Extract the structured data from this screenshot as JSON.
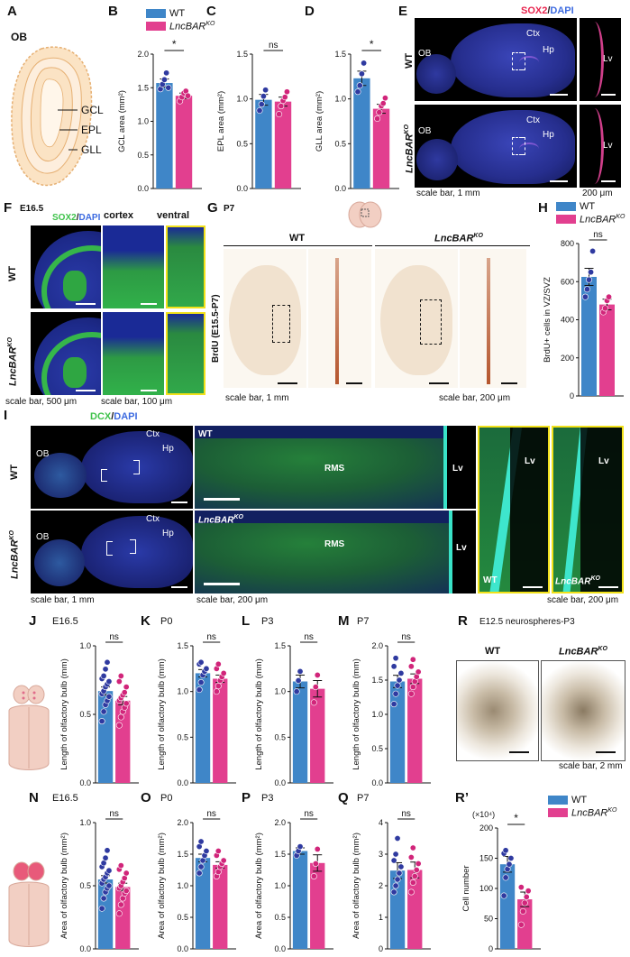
{
  "colors": {
    "wt": "#3f86c8",
    "ko": "#e23f8f",
    "ink": "#111111",
    "sox2": "#e8244e",
    "dapi": "#3d6be0",
    "dcx": "#3ec24a",
    "yellowbox": "#f1e11a"
  },
  "panels": {
    "A": "A",
    "B": "B",
    "C": "C",
    "D": "D",
    "E": "E",
    "F": "F",
    "G": "G",
    "H": "H",
    "I": "I",
    "J": "J",
    "K": "K",
    "L": "L",
    "M": "M",
    "N": "N",
    "O": "O",
    "P": "P",
    "Q": "Q",
    "R": "R",
    "R2": "R’"
  },
  "panelA": {
    "region": "OB",
    "layers": [
      "GCL",
      "EPL",
      "GLL"
    ]
  },
  "legend": {
    "wt": "WT",
    "ko_base": "LncBAR",
    "ko_sup": "KO"
  },
  "panelE": {
    "stain_red": "SOX2",
    "slash": "/",
    "stain_blue": "DAPI",
    "row1": "WT",
    "row2_base": "LncBAR",
    "row2_sup": "KO",
    "ob": "OB",
    "ctx": "Ctx",
    "hp": "Hp",
    "lv": "Lv",
    "scale_main": "scale bar, 1 mm",
    "scale_inset": "200 μm"
  },
  "panelF": {
    "age": "E16.5",
    "stain_green": "SOX2",
    "slash": "/",
    "stain_blue": "DAPI",
    "col_cortex": "cortex",
    "col_ventral": "ventral",
    "row1": "WT",
    "row2_base": "LncBAR",
    "row2_sup": "KO",
    "scale_main": "scale bar, 500 μm",
    "scale_inset": "scale bar, 100 μm"
  },
  "panelG": {
    "age": "P7",
    "wt": "WT",
    "ko_base": "LncBAR",
    "ko_sup": "KO",
    "ylabel": "BrdU (E15.5-P7)",
    "scale_main": "scale bar, 1 mm",
    "scale_inset": "scale bar, 200 μm"
  },
  "panelI": {
    "stain_green": "DCX",
    "slash": "/",
    "stain_blue": "DAPI",
    "row1": "WT",
    "row2_base": "LncBAR",
    "row2_sup": "KO",
    "ob": "OB",
    "ctx": "Ctx",
    "hp": "Hp",
    "rms": "RMS",
    "lv": "Lv",
    "wt": "WT",
    "ko_base": "LncBAR",
    "ko_sup": "KO",
    "scale_main": "scale bar, 1 mm",
    "scale_mid": "scale bar, 200 μm",
    "scale_right": "scale bar, 200 μm"
  },
  "panelR": {
    "title": "E12.5 neurospheres-P3",
    "wt": "WT",
    "ko_base": "LncBAR",
    "ko_sup": "KO",
    "scale": "scale bar, 2 mm"
  },
  "chart_data": [
    {
      "panel": "B",
      "type": "bar",
      "ylabel": "GCL area (mm²)",
      "ylim": [
        0,
        2.0
      ],
      "ticks": [
        "0.0",
        "0.5",
        "1.0",
        "1.5",
        "2.0"
      ],
      "tick_values": [
        0,
        0.5,
        1.0,
        1.5,
        2.0
      ],
      "significance": "*",
      "series": [
        {
          "name": "WT",
          "mean": 1.57,
          "sem": 0.06,
          "points": [
            1.48,
            1.55,
            1.62,
            1.72,
            1.5
          ]
        },
        {
          "name": "LncBAR KO",
          "mean": 1.38,
          "sem": 0.04,
          "points": [
            1.3,
            1.36,
            1.42,
            1.45,
            1.38
          ]
        }
      ]
    },
    {
      "panel": "C",
      "type": "bar",
      "ylabel": "EPL area (mm²)",
      "ylim": [
        0,
        1.5
      ],
      "ticks": [
        "0.0",
        "0.5",
        "1.0",
        "1.5"
      ],
      "tick_values": [
        0,
        0.5,
        1.0,
        1.5
      ],
      "significance": "ns",
      "series": [
        {
          "name": "WT",
          "mean": 0.99,
          "sem": 0.06,
          "points": [
            0.87,
            0.94,
            1.03,
            1.1
          ]
        },
        {
          "name": "LncBAR KO",
          "mean": 0.97,
          "sem": 0.05,
          "points": [
            0.83,
            0.92,
            0.98,
            1.02,
            1.08
          ]
        }
      ]
    },
    {
      "panel": "D",
      "type": "bar",
      "ylabel": "GLL area (mm²)",
      "ylim": [
        0,
        1.5
      ],
      "ticks": [
        "0.0",
        "0.5",
        "1.0",
        "1.5"
      ],
      "tick_values": [
        0,
        0.5,
        1.0,
        1.5
      ],
      "significance": "*",
      "series": [
        {
          "name": "WT",
          "mean": 1.23,
          "sem": 0.08,
          "points": [
            1.08,
            1.15,
            1.28,
            1.4
          ]
        },
        {
          "name": "LncBAR KO",
          "mean": 0.89,
          "sem": 0.05,
          "points": [
            0.78,
            0.85,
            0.92,
            0.95,
            1.01
          ]
        }
      ]
    },
    {
      "panel": "H",
      "type": "bar",
      "ylabel": "BrdU+ cells in VZ/SVZ",
      "ylim": [
        0,
        800
      ],
      "ticks": [
        "0",
        "200",
        "400",
        "600",
        "800"
      ],
      "tick_values": [
        0,
        200,
        400,
        600,
        800
      ],
      "significance": "ns",
      "series": [
        {
          "name": "WT",
          "mean": 625,
          "sem": 45,
          "points": [
            520,
            560,
            610,
            650,
            760
          ]
        },
        {
          "name": "LncBAR KO",
          "mean": 480,
          "sem": 28,
          "points": [
            440,
            460,
            500,
            520
          ]
        }
      ]
    },
    {
      "panel": "J",
      "type": "bar",
      "age": "E16.5",
      "ylabel": "Length of olfactory bulb (mm)",
      "ylim": [
        0,
        1.0
      ],
      "ticks": [
        "0.0",
        "0.5",
        "1.0"
      ],
      "tick_values": [
        0,
        0.5,
        1.0
      ],
      "significance": "ns",
      "series": [
        {
          "name": "WT",
          "mean": 0.67,
          "sem": 0.03,
          "points": [
            0.45,
            0.52,
            0.57,
            0.6,
            0.63,
            0.65,
            0.67,
            0.7,
            0.72,
            0.74,
            0.76,
            0.78,
            0.83,
            0.88
          ]
        },
        {
          "name": "LncBAR KO",
          "mean": 0.6,
          "sem": 0.03,
          "points": [
            0.42,
            0.48,
            0.52,
            0.55,
            0.58,
            0.6,
            0.62,
            0.64,
            0.66,
            0.7,
            0.74,
            0.78
          ]
        }
      ]
    },
    {
      "panel": "K",
      "type": "bar",
      "age": "P0",
      "ylabel": "Length of olfactory bulb (mm)",
      "ylim": [
        0,
        1.5
      ],
      "ticks": [
        "0.0",
        "0.5",
        "1.0",
        "1.5"
      ],
      "tick_values": [
        0,
        0.5,
        1.0,
        1.5
      ],
      "significance": "ns",
      "series": [
        {
          "name": "WT",
          "mean": 1.2,
          "sem": 0.04,
          "points": [
            1.02,
            1.1,
            1.18,
            1.22,
            1.25,
            1.3,
            1.32
          ]
        },
        {
          "name": "LncBAR KO",
          "mean": 1.14,
          "sem": 0.04,
          "points": [
            1.0,
            1.06,
            1.12,
            1.16,
            1.2,
            1.25,
            1.3
          ]
        }
      ]
    },
    {
      "panel": "L",
      "type": "bar",
      "age": "P3",
      "ylabel": "Length of olfactory bulb (mm)",
      "ylim": [
        0,
        1.5
      ],
      "ticks": [
        "0.0",
        "0.5",
        "1.0",
        "1.5"
      ],
      "tick_values": [
        0,
        0.5,
        1.0,
        1.5
      ],
      "significance": "ns",
      "series": [
        {
          "name": "WT",
          "mean": 1.11,
          "sem": 0.07,
          "points": [
            1.0,
            1.12,
            1.22
          ]
        },
        {
          "name": "LncBAR KO",
          "mean": 1.03,
          "sem": 0.09,
          "points": [
            0.88,
            1.05,
            1.18
          ]
        }
      ]
    },
    {
      "panel": "M",
      "type": "bar",
      "age": "P7",
      "ylabel": "Length of olfactory bulb (mm)",
      "ylim": [
        0,
        2.0
      ],
      "ticks": [
        "0.0",
        "0.5",
        "1.0",
        "1.5",
        "2.0"
      ],
      "tick_values": [
        0,
        0.5,
        1.0,
        1.5,
        2.0
      ],
      "significance": "ns",
      "series": [
        {
          "name": "WT",
          "mean": 1.48,
          "sem": 0.09,
          "points": [
            1.15,
            1.3,
            1.42,
            1.5,
            1.6,
            1.7,
            1.82
          ]
        },
        {
          "name": "LncBAR KO",
          "mean": 1.52,
          "sem": 0.07,
          "points": [
            1.3,
            1.4,
            1.48,
            1.55,
            1.62,
            1.7,
            1.8
          ]
        }
      ]
    },
    {
      "panel": "N",
      "type": "bar",
      "age": "E16.5",
      "ylabel": "Area of olfactory bulb (mm²)",
      "ylim": [
        0,
        1.0
      ],
      "ticks": [
        "0.0",
        "0.5",
        "1.0"
      ],
      "tick_values": [
        0,
        0.5,
        1.0
      ],
      "significance": "ns",
      "series": [
        {
          "name": "WT",
          "mean": 0.55,
          "sem": 0.03,
          "points": [
            0.32,
            0.4,
            0.45,
            0.48,
            0.5,
            0.52,
            0.55,
            0.57,
            0.6,
            0.62,
            0.65,
            0.68,
            0.72,
            0.78
          ]
        },
        {
          "name": "LncBAR KO",
          "mean": 0.49,
          "sem": 0.03,
          "points": [
            0.28,
            0.35,
            0.4,
            0.44,
            0.46,
            0.48,
            0.5,
            0.53,
            0.56,
            0.6,
            0.63,
            0.66
          ]
        }
      ]
    },
    {
      "panel": "O",
      "type": "bar",
      "age": "P0",
      "ylabel": "Area of olfactory bulb (mm²)",
      "ylim": [
        0,
        2.0
      ],
      "ticks": [
        "0.0",
        "0.5",
        "1.0",
        "1.5",
        "2.0"
      ],
      "tick_values": [
        0,
        0.5,
        1.0,
        1.5,
        2.0
      ],
      "significance": "ns",
      "series": [
        {
          "name": "WT",
          "mean": 1.44,
          "sem": 0.06,
          "points": [
            1.2,
            1.3,
            1.4,
            1.48,
            1.55,
            1.62,
            1.7
          ]
        },
        {
          "name": "LncBAR KO",
          "mean": 1.33,
          "sem": 0.05,
          "points": [
            1.15,
            1.22,
            1.3,
            1.35,
            1.4,
            1.48,
            1.55
          ]
        }
      ]
    },
    {
      "panel": "P",
      "type": "bar",
      "age": "P3",
      "ylabel": "Area of olfactory bulb (mm²)",
      "ylim": [
        0,
        2.0
      ],
      "ticks": [
        "0.0",
        "0.5",
        "1.0",
        "1.5",
        "2.0"
      ],
      "tick_values": [
        0,
        0.5,
        1.0,
        1.5,
        2.0
      ],
      "significance": "ns",
      "series": [
        {
          "name": "WT",
          "mean": 1.55,
          "sem": 0.05,
          "points": [
            1.48,
            1.55,
            1.62
          ]
        },
        {
          "name": "LncBAR KO",
          "mean": 1.36,
          "sem": 0.13,
          "points": [
            1.15,
            1.35,
            1.58
          ]
        }
      ]
    },
    {
      "panel": "Q",
      "type": "bar",
      "age": "P7",
      "ylabel": "Area of olfactory bulb (mm²)",
      "ylim": [
        0,
        4
      ],
      "ticks": [
        "0",
        "1",
        "2",
        "3",
        "4"
      ],
      "tick_values": [
        0,
        1,
        2,
        3,
        4
      ],
      "significance": "ns",
      "series": [
        {
          "name": "WT",
          "mean": 2.48,
          "sem": 0.25,
          "points": [
            1.8,
            2.0,
            2.2,
            2.4,
            2.6,
            2.8,
            3.0,
            3.5
          ]
        },
        {
          "name": "LncBAR KO",
          "mean": 2.5,
          "sem": 0.25,
          "points": [
            1.8,
            2.1,
            2.3,
            2.5,
            2.7,
            2.9,
            3.2
          ]
        }
      ]
    },
    {
      "panel": "R’",
      "type": "bar",
      "ylabel": "Cell number",
      "multiplier": "(×10⁴)",
      "ylim": [
        0,
        200
      ],
      "ticks": [
        "0",
        "50",
        "100",
        "150",
        "200"
      ],
      "tick_values": [
        0,
        50,
        100,
        150,
        200
      ],
      "significance": "*",
      "series": [
        {
          "name": "WT",
          "mean": 140,
          "sem": 13,
          "points": [
            88,
            118,
            132,
            140,
            150,
            158,
            163
          ]
        },
        {
          "name": "LncBAR KO",
          "mean": 82,
          "sem": 12,
          "points": [
            40,
            62,
            76,
            86,
            96,
            102
          ]
        }
      ]
    }
  ]
}
